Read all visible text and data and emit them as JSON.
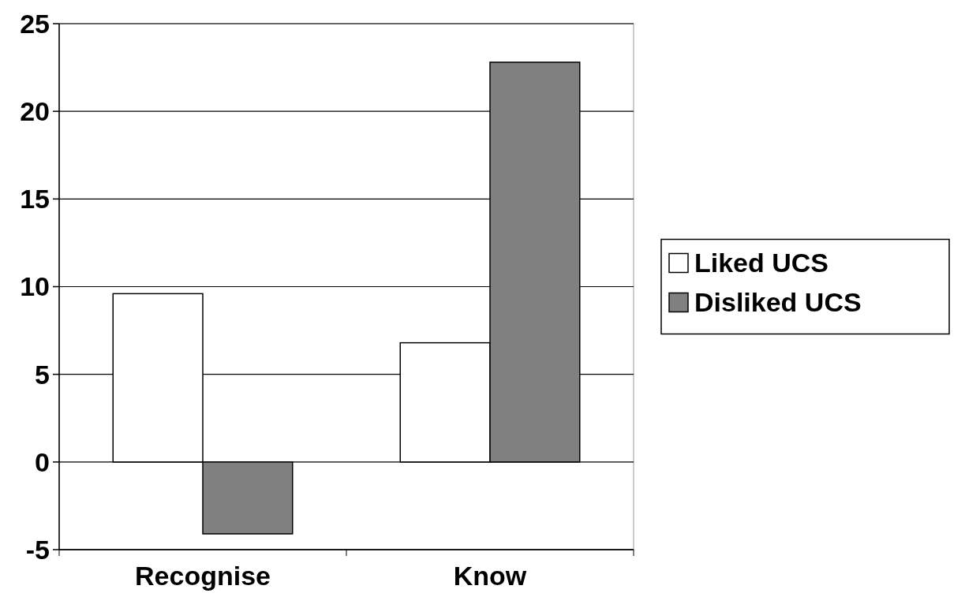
{
  "chart_data": {
    "type": "bar",
    "categories": [
      "Recognise",
      "Know"
    ],
    "series": [
      {
        "name": "Liked UCS",
        "color": "#ffffff",
        "values": [
          9.6,
          6.8
        ]
      },
      {
        "name": "Disliked UCS",
        "color": "#808080",
        "values": [
          -4.1,
          22.8
        ]
      }
    ],
    "ylim": [
      -5,
      25
    ],
    "yticks": [
      -5,
      0,
      5,
      10,
      15,
      20,
      25
    ],
    "grid": "y",
    "legend": "right"
  }
}
